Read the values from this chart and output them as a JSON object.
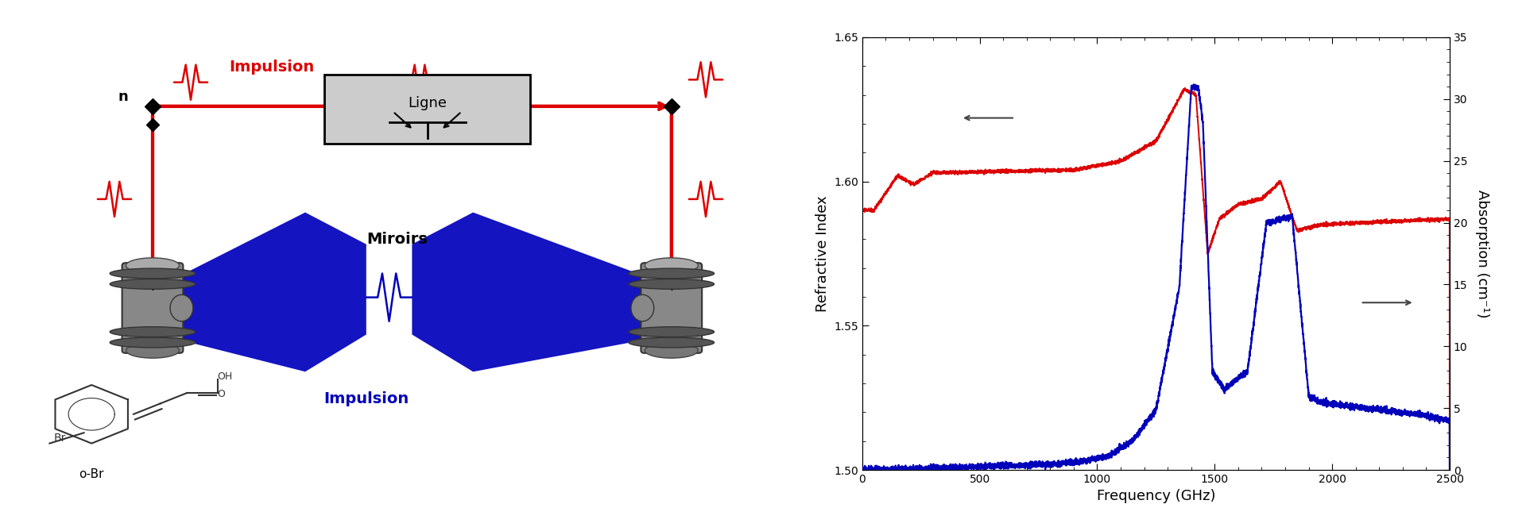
{
  "background_color": "#aed6dc",
  "plot_bg_color": "#ffffff",
  "red_color": "#dd0000",
  "blue_color": "#0000bb",
  "xlabel": "Frequency (GHz)",
  "ylabel_left": "Refractive Index",
  "ylabel_right": "Absorption (cm⁻¹)",
  "xlim": [
    0,
    2500
  ],
  "ylim_left": [
    1.5,
    1.65
  ],
  "ylim_right": [
    0,
    35
  ],
  "xticks": [
    0,
    500,
    1000,
    1500,
    2000,
    2500
  ],
  "yticks_left": [
    1.5,
    1.55,
    1.6,
    1.65
  ],
  "yticks_right": [
    0,
    5,
    10,
    15,
    20,
    25,
    30,
    35
  ],
  "figsize": [
    19.2,
    6.69
  ],
  "dpi": 100,
  "left_bg": "#ffffff",
  "diagram_label_impulsion_red": "Impulsion",
  "diagram_label_impulsion_blue": "Impulsion",
  "diagram_label_miroirs": "Miroirs",
  "diagram_label_ligne": "Ligne",
  "diagram_label_obr": "o-Br"
}
